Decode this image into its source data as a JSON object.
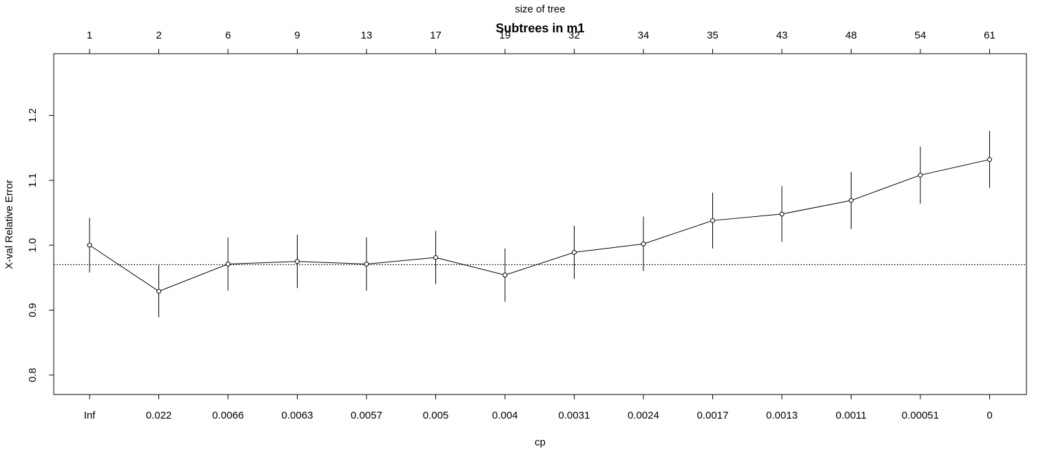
{
  "chart_data": {
    "type": "line",
    "title": "Subtrees in m1",
    "xlabel": "cp",
    "ylabel": "X-val Relative Error",
    "top_axis_label": "size of tree",
    "x_tick_labels": [
      "Inf",
      "0.022",
      "0.0066",
      "0.0063",
      "0.0057",
      "0.005",
      "0.004",
      "0.0031",
      "0.0024",
      "0.0017",
      "0.0013",
      "0.0011",
      "0.00051",
      "0"
    ],
    "size_of_tree": [
      "1",
      "2",
      "6",
      "9",
      "13",
      "17",
      "19",
      "32",
      "34",
      "35",
      "43",
      "48",
      "54",
      "61"
    ],
    "y_ticks": [
      "0.8",
      "0.9",
      "1.0",
      "1.1",
      "1.2"
    ],
    "ylim": [
      0.77,
      1.295
    ],
    "values": [
      1.0,
      0.929,
      0.971,
      0.975,
      0.971,
      0.981,
      0.954,
      0.989,
      1.002,
      1.038,
      1.048,
      1.069,
      1.108,
      1.132
    ],
    "errors": [
      0.042,
      0.04,
      0.041,
      0.041,
      0.041,
      0.041,
      0.041,
      0.041,
      0.042,
      0.043,
      0.043,
      0.044,
      0.044,
      0.044
    ],
    "reference_line": 0.97,
    "reference_style": "dotted",
    "grid": false
  }
}
